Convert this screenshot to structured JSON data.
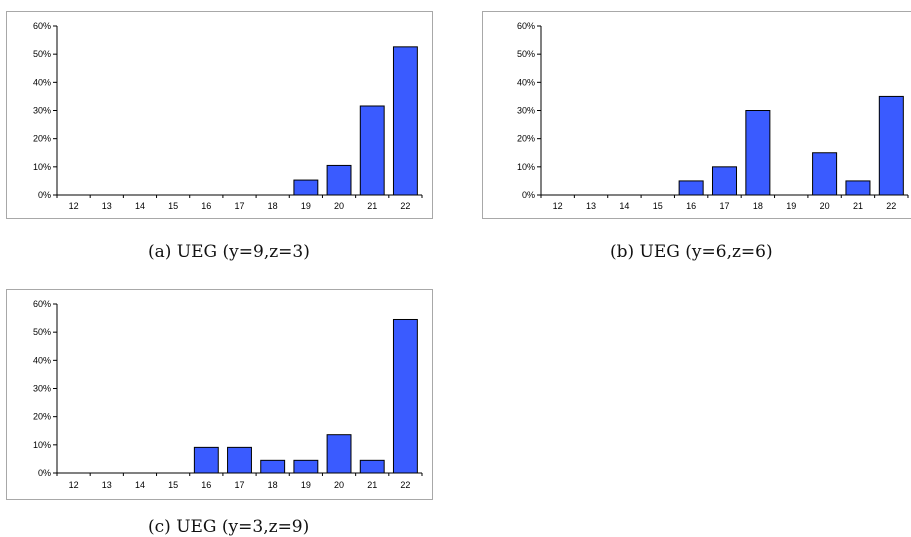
{
  "chart_data": [
    {
      "type": "bar",
      "caption": "(a)  UEG (y=9,z=3)",
      "categories": [
        "12",
        "13",
        "14",
        "15",
        "16",
        "17",
        "18",
        "19",
        "20",
        "21",
        "22"
      ],
      "values": [
        0,
        0,
        0,
        0,
        0,
        0,
        0,
        5.3,
        10.5,
        31.6,
        52.6
      ],
      "yticks": [
        "0%",
        "10%",
        "20%",
        "30%",
        "40%",
        "50%",
        "60%"
      ],
      "ylim": [
        0,
        60
      ],
      "bar_color": "#3a5bff",
      "grid": false
    },
    {
      "type": "bar",
      "caption": "(b)  UEG (y=6,z=6)",
      "categories": [
        "12",
        "13",
        "14",
        "15",
        "16",
        "17",
        "18",
        "19",
        "20",
        "21",
        "22"
      ],
      "values": [
        0,
        0,
        0,
        0,
        5,
        10,
        30,
        0,
        15,
        5,
        35
      ],
      "yticks": [
        "0%",
        "10%",
        "20%",
        "30%",
        "40%",
        "50%",
        "60%"
      ],
      "ylim": [
        0,
        60
      ],
      "bar_color": "#3a5bff",
      "grid": false
    },
    {
      "type": "bar",
      "caption": "(c)  UEG (y=3,z=9)",
      "categories": [
        "12",
        "13",
        "14",
        "15",
        "16",
        "17",
        "18",
        "19",
        "20",
        "21",
        "22"
      ],
      "values": [
        0,
        0,
        0,
        0,
        9.1,
        9.1,
        4.5,
        4.5,
        13.6,
        4.5,
        54.5
      ],
      "yticks": [
        "0%",
        "10%",
        "20%",
        "30%",
        "40%",
        "50%",
        "60%"
      ],
      "ylim": [
        0,
        60
      ],
      "bar_color": "#3a5bff",
      "grid": false
    }
  ]
}
